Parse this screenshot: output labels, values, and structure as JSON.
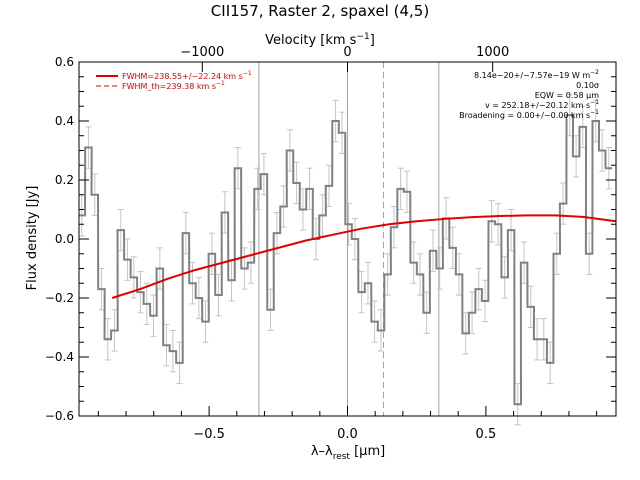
{
  "title": "CII157, Raster 2, spaxel (4,5)",
  "colors": {
    "axes": "#000000",
    "spectrum": "#808080",
    "errorbars": "#c4c4c4",
    "fit": "#e00000",
    "marker": "#a0a0a0"
  },
  "chart_data": {
    "type": "line",
    "title": "CII157, Raster 2, spaxel (4,5)",
    "xlabel": "λ–λrest [μm]",
    "ylabel": "Flux density [Jy]",
    "top_label": "Velocity [km s−1]",
    "xlim": [
      -0.97,
      0.97
    ],
    "ylim": [
      -0.6,
      0.6
    ],
    "x_ticks": [
      -0.5,
      0.0,
      0.5
    ],
    "x_tick_labels": [
      "−0.5",
      "0.0",
      "0.5"
    ],
    "y_ticks": [
      -0.6,
      -0.4,
      -0.2,
      0.0,
      0.2,
      0.4,
      0.6
    ],
    "y_tick_labels": [
      "−0.6",
      "−0.4",
      "−0.2",
      "0.0",
      "0.2",
      "0.4",
      "0.6"
    ],
    "top_ticks_wavelength": [
      -0.5245,
      0.0,
      0.5245
    ],
    "top_tick_labels": [
      "−1000",
      "0",
      "1000"
    ],
    "vertical_lines": [
      -0.32,
      0.0,
      0.33
    ],
    "dashed_line": 0.13,
    "legend": {
      "placement": "top-left",
      "entries": [
        {
          "label": "FWHM=238.55+/−22.24 km s−1",
          "style": "solid"
        },
        {
          "label": "FWHM_th=239.38 km s−1",
          "style": "dashed"
        }
      ]
    },
    "annotations": [
      "8.14e−20+/−7.57e−19 W m−2",
      "0.10σ",
      "EQW = 0.58 μm",
      "v = 252.18+/−20.12 km s−1",
      "Broadening = 0.00+/−0.00 km s−1"
    ],
    "spectrum": {
      "name": "spectrum",
      "step": 0.0235,
      "x": [
        -0.96,
        -0.936,
        -0.913,
        -0.889,
        -0.866,
        -0.842,
        -0.819,
        -0.795,
        -0.772,
        -0.748,
        -0.725,
        -0.701,
        -0.678,
        -0.654,
        -0.631,
        -0.607,
        -0.584,
        -0.56,
        -0.537,
        -0.513,
        -0.49,
        -0.466,
        -0.443,
        -0.419,
        -0.396,
        -0.372,
        -0.349,
        -0.325,
        -0.302,
        -0.278,
        -0.255,
        -0.231,
        -0.208,
        -0.184,
        -0.161,
        -0.137,
        -0.114,
        -0.09,
        -0.067,
        -0.043,
        -0.02,
        0.004,
        0.027,
        0.051,
        0.074,
        0.098,
        0.121,
        0.145,
        0.168,
        0.192,
        0.215,
        0.239,
        0.262,
        0.286,
        0.309,
        0.333,
        0.356,
        0.38,
        0.403,
        0.427,
        0.45,
        0.474,
        0.497,
        0.521,
        0.544,
        0.568,
        0.591,
        0.615,
        0.638,
        0.662,
        0.685,
        0.709,
        0.732,
        0.756,
        0.779,
        0.803,
        0.826,
        0.85,
        0.873,
        0.897,
        0.92,
        0.944
      ],
      "y": [
        0.08,
        0.31,
        0.15,
        -0.17,
        -0.34,
        -0.31,
        0.03,
        -0.07,
        -0.13,
        -0.18,
        -0.22,
        -0.26,
        -0.1,
        -0.36,
        -0.38,
        -0.42,
        0.02,
        -0.15,
        -0.2,
        -0.28,
        -0.05,
        -0.19,
        0.09,
        -0.14,
        0.24,
        -0.1,
        -0.08,
        0.17,
        0.22,
        -0.24,
        0.02,
        0.11,
        0.3,
        0.19,
        0.1,
        0.17,
        0.0,
        0.08,
        0.18,
        0.4,
        0.36,
        0.05,
        0.0,
        -0.18,
        -0.15,
        -0.28,
        -0.31,
        -0.12,
        0.04,
        0.17,
        0.16,
        -0.08,
        -0.12,
        -0.25,
        -0.04,
        -0.1,
        0.07,
        -0.03,
        -0.12,
        -0.32,
        -0.25,
        -0.17,
        -0.21,
        0.06,
        0.05,
        -0.13,
        0.03,
        -0.56,
        -0.08,
        -0.23,
        -0.34,
        -0.34,
        -0.42,
        -0.05,
        0.12,
        0.42,
        0.28,
        0.38,
        -0.05,
        0.4,
        0.3,
        0.24
      ],
      "error": 0.07
    },
    "fit": {
      "name": "fit",
      "x": [
        -0.85,
        -0.75,
        -0.65,
        -0.55,
        -0.45,
        -0.35,
        -0.25,
        -0.15,
        -0.05,
        0.05,
        0.15,
        0.25,
        0.35,
        0.45,
        0.55,
        0.65,
        0.75,
        0.85,
        0.97
      ],
      "y": [
        -0.2,
        -0.17,
        -0.135,
        -0.105,
        -0.08,
        -0.055,
        -0.03,
        -0.005,
        0.015,
        0.035,
        0.05,
        0.06,
        0.068,
        0.074,
        0.078,
        0.08,
        0.08,
        0.075,
        0.06
      ]
    }
  }
}
